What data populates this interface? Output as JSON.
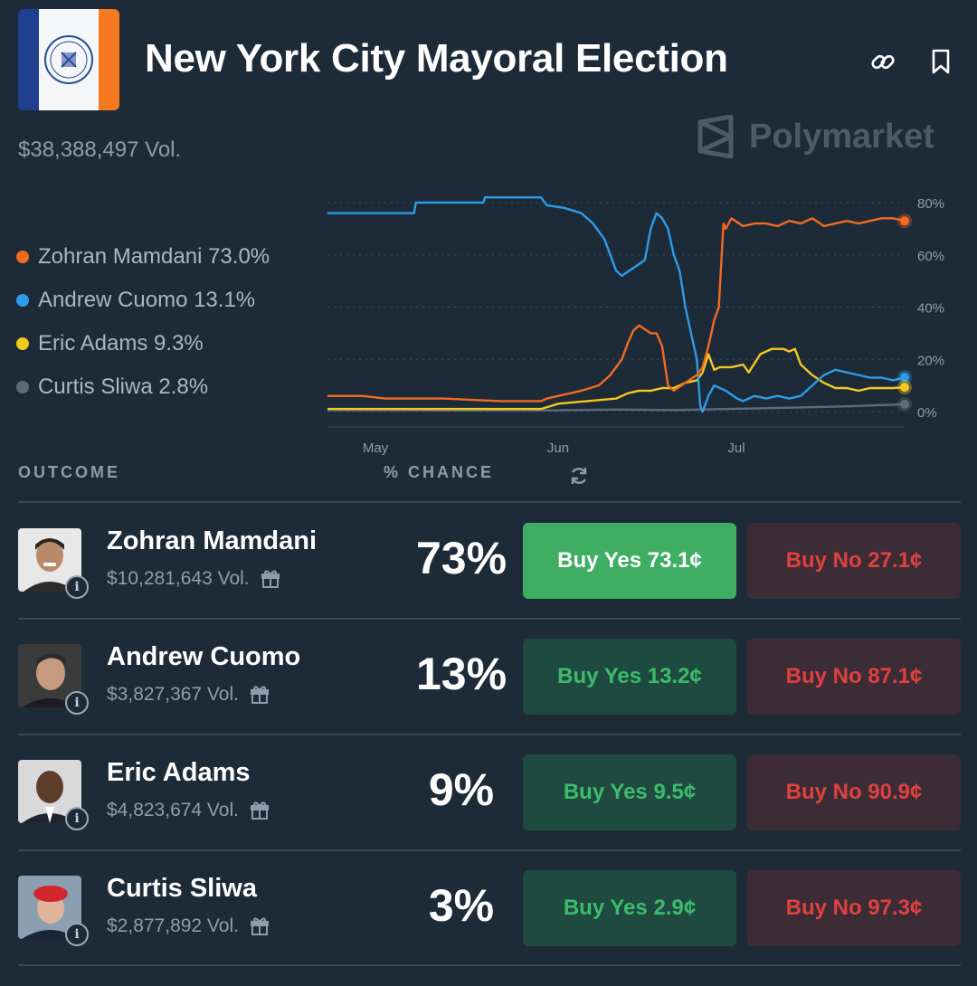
{
  "header": {
    "title": "New York City Mayoral Election",
    "volume": "$38,388,497 Vol.",
    "brand": "Polymarket"
  },
  "legend": [
    {
      "text": "Zohran Mamdani 73.0%",
      "color": "#f26b21"
    },
    {
      "text": "Andrew Cuomo 13.1%",
      "color": "#2e9be8"
    },
    {
      "text": "Eric Adams 9.3%",
      "color": "#f4c91d"
    },
    {
      "text": "Curtis Sliwa 2.8%",
      "color": "#5c6c7d"
    }
  ],
  "table": {
    "col_outcome": "OUTCOME",
    "col_chance": "% CHANCE",
    "rows": [
      {
        "name": "Zohran Mamdani",
        "volume": "$10,281,643 Vol.",
        "pct": "73%",
        "yes": "Buy Yes 73.1¢",
        "no": "Buy No 27.1¢"
      },
      {
        "name": "Andrew Cuomo",
        "volume": "$3,827,367 Vol.",
        "pct": "13%",
        "yes": "Buy Yes 13.2¢",
        "no": "Buy No 87.1¢"
      },
      {
        "name": "Eric Adams",
        "volume": "$4,823,674 Vol.",
        "pct": "9%",
        "yes": "Buy Yes 9.5¢",
        "no": "Buy No 90.9¢"
      },
      {
        "name": "Curtis Sliwa",
        "volume": "$2,877,892 Vol.",
        "pct": "3%",
        "yes": "Buy Yes 2.9¢",
        "no": "Buy No 97.3¢"
      }
    ]
  },
  "chart_data": {
    "type": "line",
    "x_ticks": [
      "May",
      "Jun",
      "Jul"
    ],
    "y_ticks": [
      "80%",
      "60%",
      "40%",
      "20%",
      "0%"
    ],
    "ylim": [
      0,
      80
    ],
    "grid": true,
    "legend_position": "left",
    "x_range": [
      0,
      100
    ],
    "series": [
      {
        "name": "Zohran Mamdani",
        "color": "#f26b21",
        "end_value": 73.0,
        "points": [
          [
            0,
            6
          ],
          [
            6,
            6
          ],
          [
            10,
            5
          ],
          [
            20,
            5
          ],
          [
            30,
            4
          ],
          [
            37,
            4
          ],
          [
            38,
            5
          ],
          [
            40,
            6
          ],
          [
            44,
            8
          ],
          [
            47,
            10
          ],
          [
            49,
            14
          ],
          [
            51,
            20
          ],
          [
            52,
            26
          ],
          [
            53,
            31
          ],
          [
            54,
            33
          ],
          [
            56,
            30
          ],
          [
            57,
            30
          ],
          [
            58,
            25
          ],
          [
            59,
            10
          ],
          [
            60,
            8
          ],
          [
            62,
            11
          ],
          [
            64,
            14
          ],
          [
            65,
            17
          ],
          [
            66,
            25
          ],
          [
            67,
            35
          ],
          [
            67.8,
            40
          ],
          [
            68.3,
            60
          ],
          [
            68.6,
            72
          ],
          [
            69,
            70
          ],
          [
            70,
            74
          ],
          [
            72,
            71
          ],
          [
            74,
            72
          ],
          [
            76,
            72
          ],
          [
            78,
            71
          ],
          [
            80,
            73
          ],
          [
            82,
            72
          ],
          [
            84,
            74
          ],
          [
            86,
            71
          ],
          [
            88,
            72
          ],
          [
            90,
            73
          ],
          [
            92,
            72
          ],
          [
            94,
            73
          ],
          [
            96,
            74
          ],
          [
            98,
            74
          ],
          [
            100,
            73
          ]
        ]
      },
      {
        "name": "Andrew Cuomo",
        "color": "#2e9be8",
        "end_value": 13.1,
        "points": [
          [
            0,
            76
          ],
          [
            15,
            76
          ],
          [
            15.3,
            80
          ],
          [
            27,
            80
          ],
          [
            27.3,
            82
          ],
          [
            37,
            82
          ],
          [
            38,
            79
          ],
          [
            41,
            78
          ],
          [
            44,
            76
          ],
          [
            46,
            72
          ],
          [
            48,
            66
          ],
          [
            50,
            54
          ],
          [
            51,
            52
          ],
          [
            53,
            55
          ],
          [
            55,
            58
          ],
          [
            56,
            70
          ],
          [
            57,
            76
          ],
          [
            58,
            74
          ],
          [
            59,
            70
          ],
          [
            60,
            60
          ],
          [
            61,
            54
          ],
          [
            62,
            40
          ],
          [
            63,
            30
          ],
          [
            64,
            20
          ],
          [
            64.6,
            2
          ],
          [
            65,
            0
          ],
          [
            66,
            6
          ],
          [
            67,
            10
          ],
          [
            69,
            8
          ],
          [
            71,
            5
          ],
          [
            72,
            4
          ],
          [
            74,
            6
          ],
          [
            76,
            5
          ],
          [
            78,
            6
          ],
          [
            80,
            5
          ],
          [
            82,
            6
          ],
          [
            84,
            10
          ],
          [
            86,
            14
          ],
          [
            88,
            16
          ],
          [
            90,
            15
          ],
          [
            92,
            14
          ],
          [
            94,
            13
          ],
          [
            96,
            13
          ],
          [
            98,
            12
          ],
          [
            100,
            13.1
          ]
        ]
      },
      {
        "name": "Eric Adams",
        "color": "#f4c91d",
        "end_value": 9.3,
        "points": [
          [
            0,
            1
          ],
          [
            10,
            1
          ],
          [
            20,
            1
          ],
          [
            30,
            1
          ],
          [
            37,
            1
          ],
          [
            40,
            3
          ],
          [
            45,
            4
          ],
          [
            50,
            5
          ],
          [
            52,
            7
          ],
          [
            54,
            8
          ],
          [
            56,
            8
          ],
          [
            58,
            9
          ],
          [
            60,
            9
          ],
          [
            62,
            11
          ],
          [
            64,
            12
          ],
          [
            65,
            15
          ],
          [
            66,
            22
          ],
          [
            67,
            16
          ],
          [
            68,
            17
          ],
          [
            70,
            17
          ],
          [
            72,
            18
          ],
          [
            73,
            15
          ],
          [
            75,
            22
          ],
          [
            77,
            24
          ],
          [
            79,
            24
          ],
          [
            80,
            23
          ],
          [
            81,
            24
          ],
          [
            82,
            18
          ],
          [
            84,
            14
          ],
          [
            86,
            11
          ],
          [
            88,
            9
          ],
          [
            90,
            9
          ],
          [
            92,
            8
          ],
          [
            94,
            9
          ],
          [
            96,
            9
          ],
          [
            98,
            9
          ],
          [
            100,
            9.3
          ]
        ]
      },
      {
        "name": "Curtis Sliwa",
        "color": "#5c6c7d",
        "end_value": 2.8,
        "points": [
          [
            0,
            0.6
          ],
          [
            20,
            0.4
          ],
          [
            40,
            0.5
          ],
          [
            50,
            0.8
          ],
          [
            60,
            0.6
          ],
          [
            70,
            1
          ],
          [
            80,
            1.5
          ],
          [
            90,
            2
          ],
          [
            100,
            2.8
          ]
        ]
      }
    ]
  }
}
